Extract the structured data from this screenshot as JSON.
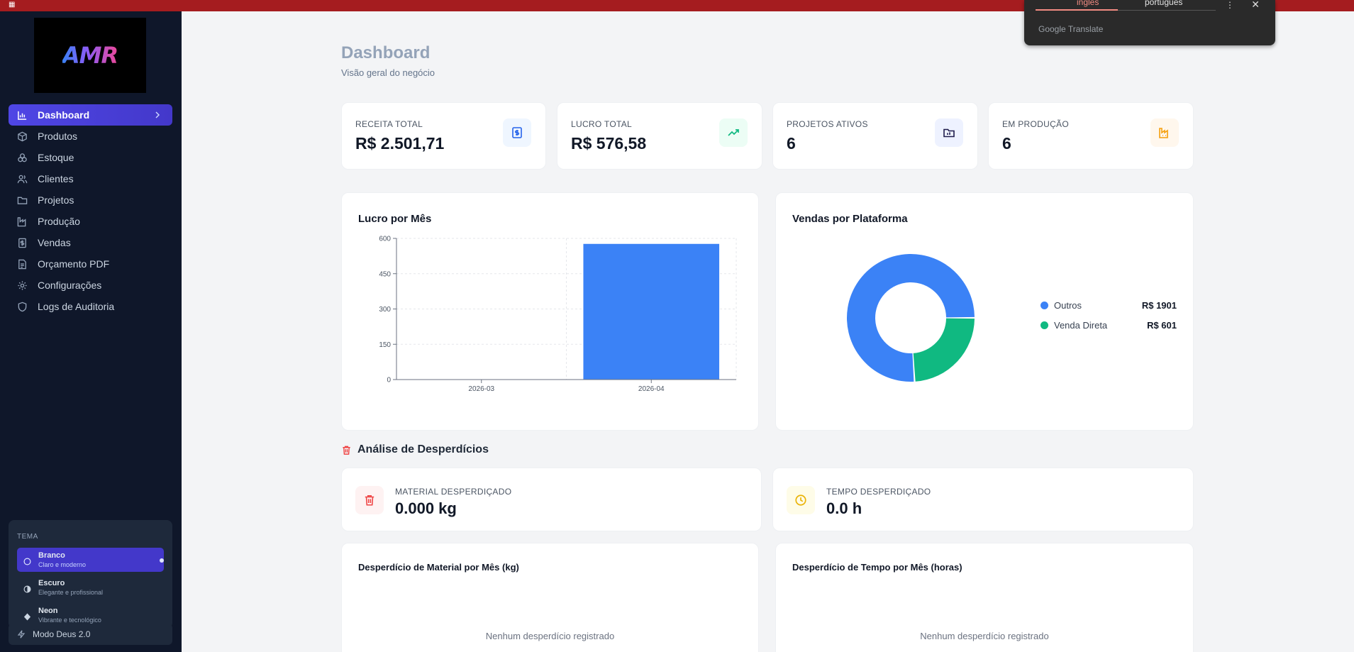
{
  "translate_popup": {
    "tab_source": "inglês",
    "tab_target": "português",
    "brand": "Google Translate"
  },
  "sidebar": {
    "logo_text": "AMR",
    "items": [
      {
        "label": "Dashboard",
        "icon": "bar-chart-icon",
        "active": true
      },
      {
        "label": "Produtos",
        "icon": "package-icon"
      },
      {
        "label": "Estoque",
        "icon": "boxes-icon"
      },
      {
        "label": "Clientes",
        "icon": "users-icon"
      },
      {
        "label": "Projetos",
        "icon": "folder-icon"
      },
      {
        "label": "Produção",
        "icon": "factory-icon"
      },
      {
        "label": "Vendas",
        "icon": "receipt-icon"
      },
      {
        "label": "Orçamento PDF",
        "icon": "file-icon"
      },
      {
        "label": "Configurações",
        "icon": "gear-icon"
      },
      {
        "label": "Logs de Auditoria",
        "icon": "shield-icon"
      }
    ],
    "theme": {
      "title": "TEMA",
      "options": [
        {
          "name": "Branco",
          "desc": "Claro e moderno",
          "active": true
        },
        {
          "name": "Escuro",
          "desc": "Elegante e profissional"
        },
        {
          "name": "Neon",
          "desc": "Vibrante e tecnológico"
        }
      ]
    },
    "god_mode": "Modo Deus 2.0"
  },
  "header": {
    "title": "Dashboard",
    "subtitle": "Visão geral do negócio"
  },
  "stats": [
    {
      "label": "RECEITA TOTAL",
      "value": "R$ 2.501,71",
      "icon": "dollar-icon",
      "color": "#2563eb",
      "bg": "#eff6ff"
    },
    {
      "label": "LUCRO TOTAL",
      "value": "R$ 576,58",
      "icon": "trending-up-icon",
      "color": "#10b981",
      "bg": "#ecfdf5"
    },
    {
      "label": "PROJETOS ATIVOS",
      "value": "6",
      "icon": "folder-icon",
      "color": "#1e1b4b",
      "bg": "#eef2ff"
    },
    {
      "label": "EM PRODUÇÃO",
      "value": "6",
      "icon": "factory-icon",
      "color": "#f59e0b",
      "bg": "#fff7ed"
    }
  ],
  "profit_chart": {
    "title": "Lucro por Mês",
    "chart_data": {
      "type": "bar",
      "categories": [
        "2026-03",
        "2026-04"
      ],
      "values": [
        0,
        576.58
      ],
      "ylim": [
        0,
        600
      ],
      "yticks": [
        "0",
        "150",
        "300",
        "450",
        "600"
      ],
      "color": "#3b82f6",
      "grid": true
    }
  },
  "platform_chart": {
    "title": "Vendas por Plataforma",
    "chart_data": {
      "type": "pie",
      "categories": [
        "Outros",
        "Venda Direta"
      ],
      "values": [
        1901,
        601
      ],
      "labels": [
        "R$ 1901",
        "R$ 601"
      ],
      "colors": [
        "#3b82f6",
        "#10b981"
      ],
      "donut": true,
      "legend": "right"
    }
  },
  "waste": {
    "title": "Análise de Desperdícios",
    "cards": [
      {
        "label": "MATERIAL DESPERDIÇADO",
        "value": "0.000 kg",
        "icon": "trash-icon",
        "color": "#ef4444",
        "bg": "#fef2f2"
      },
      {
        "label": "TEMPO DESPERDIÇADO",
        "value": "0.0 h",
        "icon": "clock-icon",
        "color": "#eab308",
        "bg": "#fefce8"
      }
    ],
    "material_chart": {
      "title": "Desperdício de Material por Mês (kg)",
      "empty": "Nenhum desperdício registrado"
    },
    "time_chart": {
      "title": "Desperdício de Tempo por Mês (horas)",
      "empty": "Nenhum desperdício registrado"
    }
  }
}
